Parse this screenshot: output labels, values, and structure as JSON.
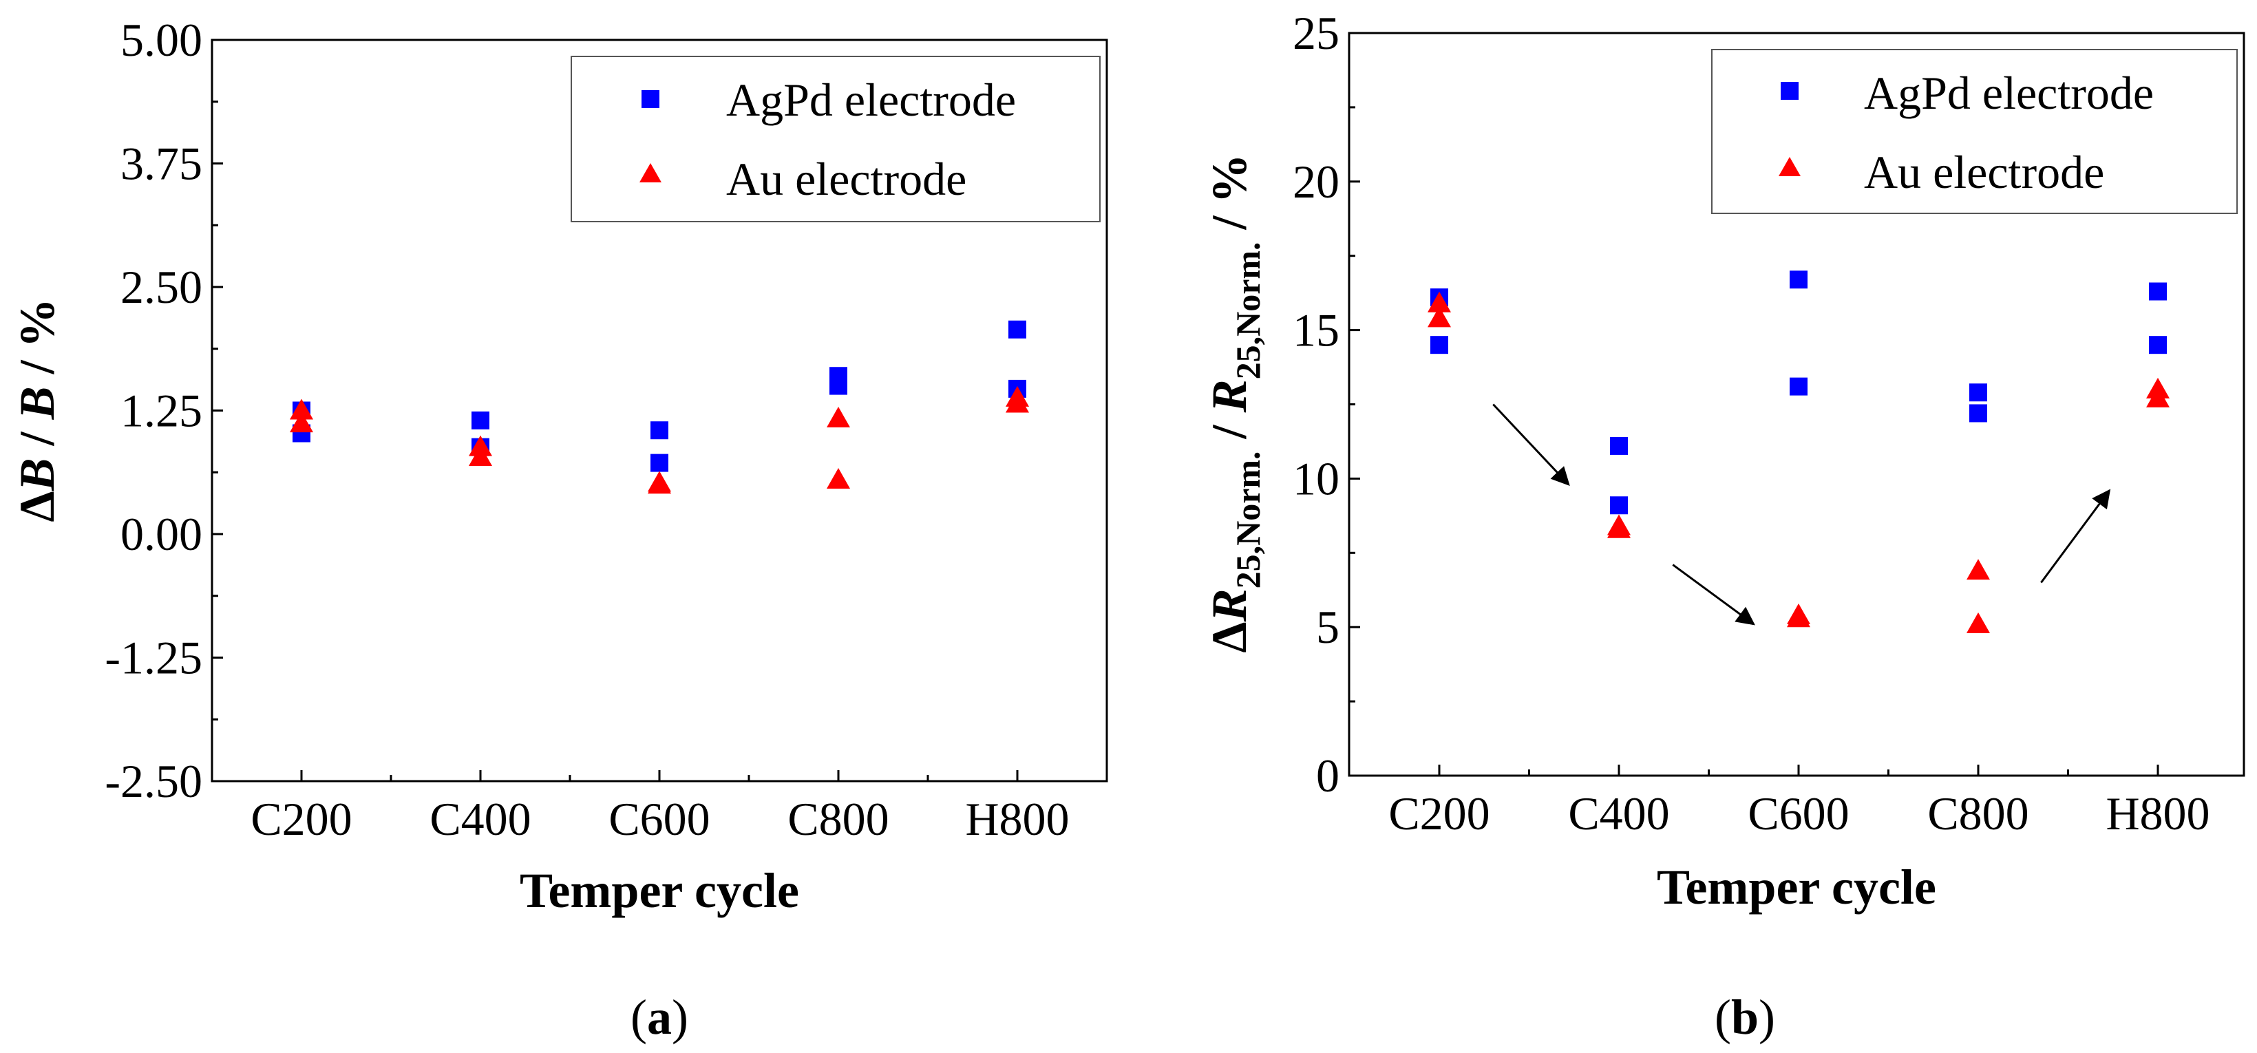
{
  "chart_data": [
    {
      "type": "scatter",
      "panel_label": "a",
      "categories": [
        "C200",
        "C400",
        "C600",
        "C800",
        "H800"
      ],
      "xlabel": "Temper cycle",
      "ylabel": {
        "delta": "Δ",
        "var1": "B",
        "sep1": " / ",
        "var2": "B",
        "sep2": " / %"
      },
      "ylim": [
        -2.5,
        5.0
      ],
      "yticks": [
        "-2.50",
        "-1.25",
        "0.00",
        "1.25",
        "2.50",
        "3.75",
        "5.00"
      ],
      "ytick_values": [
        -2.5,
        -1.25,
        0,
        1.25,
        2.5,
        3.75,
        5.0
      ],
      "legend_position": "top-right",
      "series": [
        {
          "name": "AgPd electrode",
          "marker": "square",
          "color": "#0000ff",
          "points": [
            [
              0,
              1.25
            ],
            [
              0,
              1.02
            ],
            [
              1,
              1.15
            ],
            [
              1,
              0.88
            ],
            [
              2,
              1.05
            ],
            [
              2,
              0.72
            ],
            [
              3,
              1.6
            ],
            [
              3,
              1.5
            ],
            [
              4,
              2.07
            ],
            [
              4,
              1.47
            ]
          ]
        },
        {
          "name": "Au electrode",
          "marker": "triangle",
          "color": "#ff0000",
          "points": [
            [
              0,
              1.25
            ],
            [
              0,
              1.12
            ],
            [
              1,
              0.88
            ],
            [
              1,
              0.78
            ],
            [
              2,
              0.52
            ],
            [
              2,
              0.5
            ],
            [
              3,
              1.17
            ],
            [
              3,
              0.55
            ],
            [
              4,
              1.38
            ],
            [
              4,
              1.32
            ]
          ]
        }
      ]
    },
    {
      "type": "scatter",
      "panel_label": "b",
      "categories": [
        "C200",
        "C400",
        "C600",
        "C800",
        "H800"
      ],
      "xlabel": "Temper cycle",
      "ylabel": {
        "delta": "Δ",
        "var1": "R",
        "sub1": "25,Norm.",
        "sep": " / ",
        "var2": "R",
        "sub2": "25,Norm.",
        "unit": " / %"
      },
      "ylim": [
        0,
        25
      ],
      "yticks": [
        "0",
        "5",
        "10",
        "15",
        "20",
        "25"
      ],
      "ytick_values": [
        0,
        5,
        10,
        15,
        20,
        25
      ],
      "legend_position": "top-right",
      "series": [
        {
          "name": "AgPd electrode",
          "marker": "square",
          "color": "#0000ff",
          "points": [
            [
              0,
              16.1
            ],
            [
              0,
              14.5
            ],
            [
              1,
              11.1
            ],
            [
              1,
              9.1
            ],
            [
              2,
              16.7
            ],
            [
              2,
              13.1
            ],
            [
              3,
              12.9
            ],
            [
              3,
              12.2
            ],
            [
              4,
              16.3
            ],
            [
              4,
              14.5
            ]
          ]
        },
        {
          "name": "Au electrode",
          "marker": "triangle",
          "color": "#ff0000",
          "points": [
            [
              0,
              15.9
            ],
            [
              0,
              15.4
            ],
            [
              1,
              8.4
            ],
            [
              1,
              8.3
            ],
            [
              2,
              5.4
            ],
            [
              2,
              5.3
            ],
            [
              3,
              6.9
            ],
            [
              3,
              5.1
            ],
            [
              4,
              13.0
            ],
            [
              4,
              12.7
            ]
          ]
        }
      ],
      "annotations": [
        {
          "type": "arrow",
          "from": [
            0.3,
            12.5
          ],
          "to": [
            0.72,
            9.8
          ]
        },
        {
          "type": "arrow",
          "from": [
            1.3,
            7.1
          ],
          "to": [
            1.75,
            5.1
          ]
        },
        {
          "type": "arrow",
          "from": [
            3.35,
            6.5
          ],
          "to": [
            3.73,
            9.6
          ]
        }
      ]
    }
  ]
}
